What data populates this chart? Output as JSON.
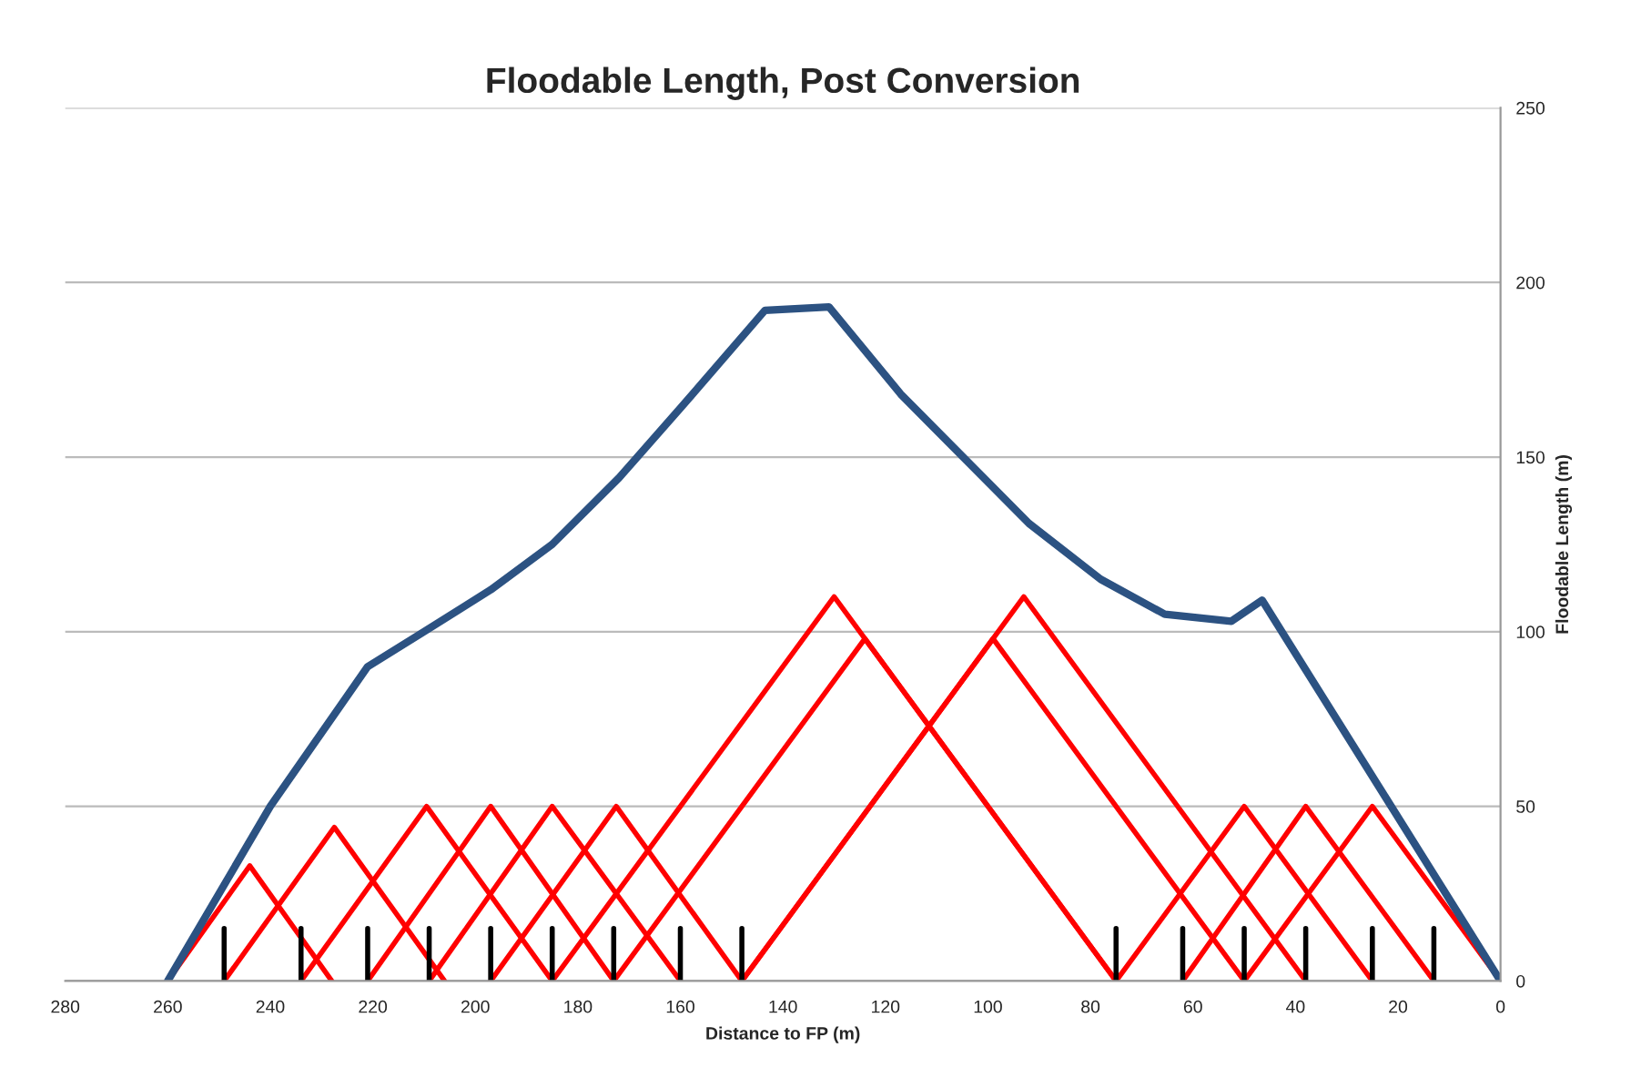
{
  "chart_data": {
    "type": "line",
    "title": "Floodable Length, Post Conversion",
    "xlabel": "Distance to FP (m)",
    "ylabel": "Floodable Length (m)",
    "xlim": [
      280,
      0
    ],
    "xticks": [
      280,
      260,
      240,
      220,
      200,
      180,
      160,
      140,
      120,
      100,
      80,
      60,
      40,
      20,
      0
    ],
    "ylim": [
      0,
      250
    ],
    "yticks": [
      0,
      50,
      100,
      150,
      200,
      250
    ],
    "grid": "y",
    "series": [
      {
        "color": "#ff0000",
        "x": [
          260,
          244,
          228
        ],
        "values": [
          0,
          33,
          0
        ]
      },
      {
        "color": "#ff0000",
        "x": [
          249,
          227.5,
          206
        ],
        "values": [
          0,
          44,
          0
        ]
      },
      {
        "color": "#ff0000",
        "x": [
          234,
          209.5,
          185
        ],
        "values": [
          0,
          50,
          0
        ]
      },
      {
        "color": "#ff0000",
        "x": [
          221,
          197,
          173
        ],
        "values": [
          0,
          50,
          0
        ]
      },
      {
        "color": "#ff0000",
        "x": [
          209,
          185,
          160
        ],
        "values": [
          0,
          50,
          0
        ]
      },
      {
        "color": "#ff0000",
        "x": [
          197,
          172.5,
          148
        ],
        "values": [
          0,
          50,
          0
        ]
      },
      {
        "color": "#ff0000",
        "x": [
          185,
          130,
          75
        ],
        "values": [
          0,
          110,
          0
        ]
      },
      {
        "color": "#ff0000",
        "x": [
          173,
          124,
          75
        ],
        "values": [
          0,
          98,
          0
        ]
      },
      {
        "color": "#ff0000",
        "x": [
          148,
          93,
          38
        ],
        "values": [
          0,
          110,
          0
        ]
      },
      {
        "color": "#ff0000",
        "x": [
          148,
          99,
          50
        ],
        "values": [
          0,
          98,
          0
        ]
      },
      {
        "color": "#ff0000",
        "x": [
          75,
          50,
          25
        ],
        "values": [
          0,
          50,
          0
        ]
      },
      {
        "color": "#ff0000",
        "x": [
          62,
          38,
          13
        ],
        "values": [
          0,
          50,
          0
        ]
      },
      {
        "color": "#ff0000",
        "x": [
          50,
          25,
          0
        ],
        "values": [
          0,
          50,
          0
        ]
      },
      {
        "color": "#000000",
        "x": [
          249,
          249
        ],
        "values": [
          0,
          15
        ]
      },
      {
        "color": "#000000",
        "x": [
          234,
          234
        ],
        "values": [
          0,
          15
        ]
      },
      {
        "color": "#000000",
        "x": [
          221,
          221
        ],
        "values": [
          0,
          15
        ]
      },
      {
        "color": "#000000",
        "x": [
          209,
          209
        ],
        "values": [
          0,
          15
        ]
      },
      {
        "color": "#000000",
        "x": [
          197,
          197
        ],
        "values": [
          0,
          15
        ]
      },
      {
        "color": "#000000",
        "x": [
          185,
          185
        ],
        "values": [
          0,
          15
        ]
      },
      {
        "color": "#000000",
        "x": [
          173,
          173
        ],
        "values": [
          0,
          15
        ]
      },
      {
        "color": "#000000",
        "x": [
          160,
          160
        ],
        "values": [
          0,
          15
        ]
      },
      {
        "color": "#000000",
        "x": [
          148,
          148
        ],
        "values": [
          0,
          15
        ]
      },
      {
        "color": "#000000",
        "x": [
          75,
          75
        ],
        "values": [
          0,
          15
        ]
      },
      {
        "color": "#000000",
        "x": [
          62,
          62
        ],
        "values": [
          0,
          15
        ]
      },
      {
        "color": "#000000",
        "x": [
          50,
          50
        ],
        "values": [
          0,
          15
        ]
      },
      {
        "color": "#000000",
        "x": [
          38,
          38
        ],
        "values": [
          0,
          15
        ]
      },
      {
        "color": "#000000",
        "x": [
          25,
          25
        ],
        "values": [
          0,
          15
        ]
      },
      {
        "color": "#000000",
        "x": [
          13,
          13
        ],
        "values": [
          0,
          15
        ]
      },
      {
        "color": "#2c5282",
        "x": [
          260,
          240,
          221,
          210,
          197,
          185,
          172,
          160,
          143.5,
          131,
          117,
          92,
          78,
          65.5,
          52.5,
          46.5,
          0
        ],
        "values": [
          0,
          50,
          90,
          100,
          112,
          125,
          144,
          164,
          192,
          193,
          168,
          131,
          115,
          105,
          103,
          109,
          0
        ]
      }
    ]
  }
}
